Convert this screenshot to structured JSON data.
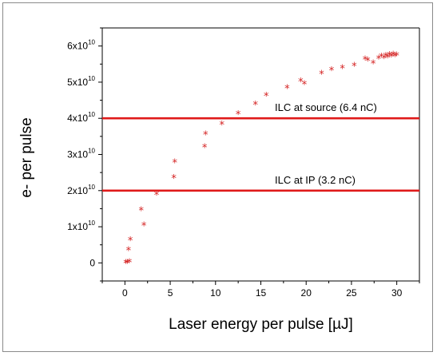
{
  "chart_data": {
    "type": "scatter",
    "title": "",
    "xlabel": "Laser energy per pulse [µJ]",
    "ylabel": "e- per pulse",
    "xlim": [
      -2.5,
      32.5
    ],
    "ylim": [
      -0.5,
      6.5
    ],
    "x_ticks": [
      0,
      5,
      10,
      15,
      20,
      25,
      30
    ],
    "y_ticks": [
      {
        "value": 0,
        "mant": "0",
        "exp": ""
      },
      {
        "value": 1,
        "mant": "1x10",
        "exp": "10"
      },
      {
        "value": 2,
        "mant": "2x10",
        "exp": "10"
      },
      {
        "value": 3,
        "mant": "3x10",
        "exp": "10"
      },
      {
        "value": 4,
        "mant": "4x10",
        "exp": "10"
      },
      {
        "value": 5,
        "mant": "5x10",
        "exp": "10"
      },
      {
        "value": 6,
        "mant": "6x10",
        "exp": "10"
      }
    ],
    "marker_color": "#d42020",
    "line_color": "#e01a1a",
    "reference_lines": [
      {
        "y": 4.0,
        "label": "ILC at source (6.4 nC)"
      },
      {
        "y": 2.0,
        "label": "ILC at IP (3.2 nC)"
      }
    ],
    "y_unit_note": "values in units of 1x10^10",
    "x": [
      0.1,
      0.25,
      0.4,
      0.5,
      0.6,
      1.8,
      2.1,
      3.5,
      5.4,
      5.5,
      8.8,
      8.9,
      10.7,
      12.5,
      14.4,
      15.6,
      17.9,
      19.4,
      19.8,
      21.7,
      22.8,
      24.0,
      25.3,
      26.5,
      26.8,
      27.4,
      28.0,
      28.3,
      28.6,
      28.8,
      29.0,
      29.2,
      29.4,
      29.6,
      29.8,
      30.0
    ],
    "y": [
      0.0,
      0.0,
      0.35,
      0.02,
      0.63,
      1.45,
      1.03,
      1.88,
      2.35,
      2.78,
      3.2,
      3.55,
      3.83,
      4.12,
      4.38,
      4.62,
      4.83,
      5.02,
      4.94,
      5.23,
      5.33,
      5.38,
      5.45,
      5.63,
      5.6,
      5.52,
      5.65,
      5.7,
      5.66,
      5.73,
      5.68,
      5.75,
      5.7,
      5.76,
      5.72,
      5.74
    ]
  }
}
